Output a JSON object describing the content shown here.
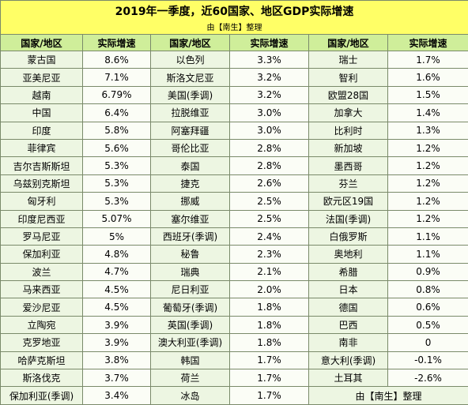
{
  "header": {
    "title": "2019年一季度，近60国家、地区GDP实际增速",
    "subtitle": "由【南生】整理"
  },
  "table": {
    "columns": [
      "国家/地区",
      "实际增速",
      "国家/地区",
      "实际增速",
      "国家/地区",
      "实际增速"
    ],
    "rows": [
      [
        "蒙古国",
        "8.6%",
        "以色列",
        "3.3%",
        "瑞士",
        "1.7%"
      ],
      [
        "亚美尼亚",
        "7.1%",
        "斯洛文尼亚",
        "3.2%",
        "智利",
        "1.6%"
      ],
      [
        "越南",
        "6.79%",
        "美国(季调)",
        "3.2%",
        "欧盟28国",
        "1.5%"
      ],
      [
        "中国",
        "6.4%",
        "拉脱维亚",
        "3.0%",
        "加拿大",
        "1.4%"
      ],
      [
        "印度",
        "5.8%",
        "阿塞拜疆",
        "3.0%",
        "比利时",
        "1.3%"
      ],
      [
        "菲律宾",
        "5.6%",
        "哥伦比亚",
        "2.8%",
        "新加坡",
        "1.2%"
      ],
      [
        "吉尔吉斯斯坦",
        "5.3%",
        "泰国",
        "2.8%",
        "墨西哥",
        "1.2%"
      ],
      [
        "乌兹别克斯坦",
        "5.3%",
        "捷克",
        "2.6%",
        "芬兰",
        "1.2%"
      ],
      [
        "匈牙利",
        "5.3%",
        "挪威",
        "2.5%",
        "欧元区19国",
        "1.2%"
      ],
      [
        "印度尼西亚",
        "5.07%",
        "塞尔维亚",
        "2.5%",
        "法国(季调)",
        "1.2%"
      ],
      [
        "罗马尼亚",
        "5%",
        "西班牙(季调)",
        "2.4%",
        "白俄罗斯",
        "1.1%"
      ],
      [
        "保加利亚",
        "4.8%",
        "秘鲁",
        "2.3%",
        "奥地利",
        "1.1%"
      ],
      [
        "波兰",
        "4.7%",
        "瑞典",
        "2.1%",
        "希腊",
        "0.9%"
      ],
      [
        "马来西亚",
        "4.5%",
        "尼日利亚",
        "2.0%",
        "日本",
        "0.8%"
      ],
      [
        "爱沙尼亚",
        "4.5%",
        "葡萄牙(季调)",
        "1.8%",
        "德国",
        "0.6%"
      ],
      [
        "立陶宛",
        "3.9%",
        "英国(季调)",
        "1.8%",
        "巴西",
        "0.5%"
      ],
      [
        "克罗地亚",
        "3.9%",
        "澳大利亚(季调)",
        "1.8%",
        "南非",
        "0"
      ],
      [
        "哈萨克斯坦",
        "3.8%",
        "韩国",
        "1.7%",
        "意大利(季调)",
        "-0.1%"
      ],
      [
        "斯洛伐克",
        "3.7%",
        "荷兰",
        "1.7%",
        "土耳其",
        "-2.6%"
      ],
      [
        "保加利亚(季调)",
        "3.4%",
        "冰岛",
        "1.7%"
      ]
    ],
    "note": "由【南生】整理"
  }
}
